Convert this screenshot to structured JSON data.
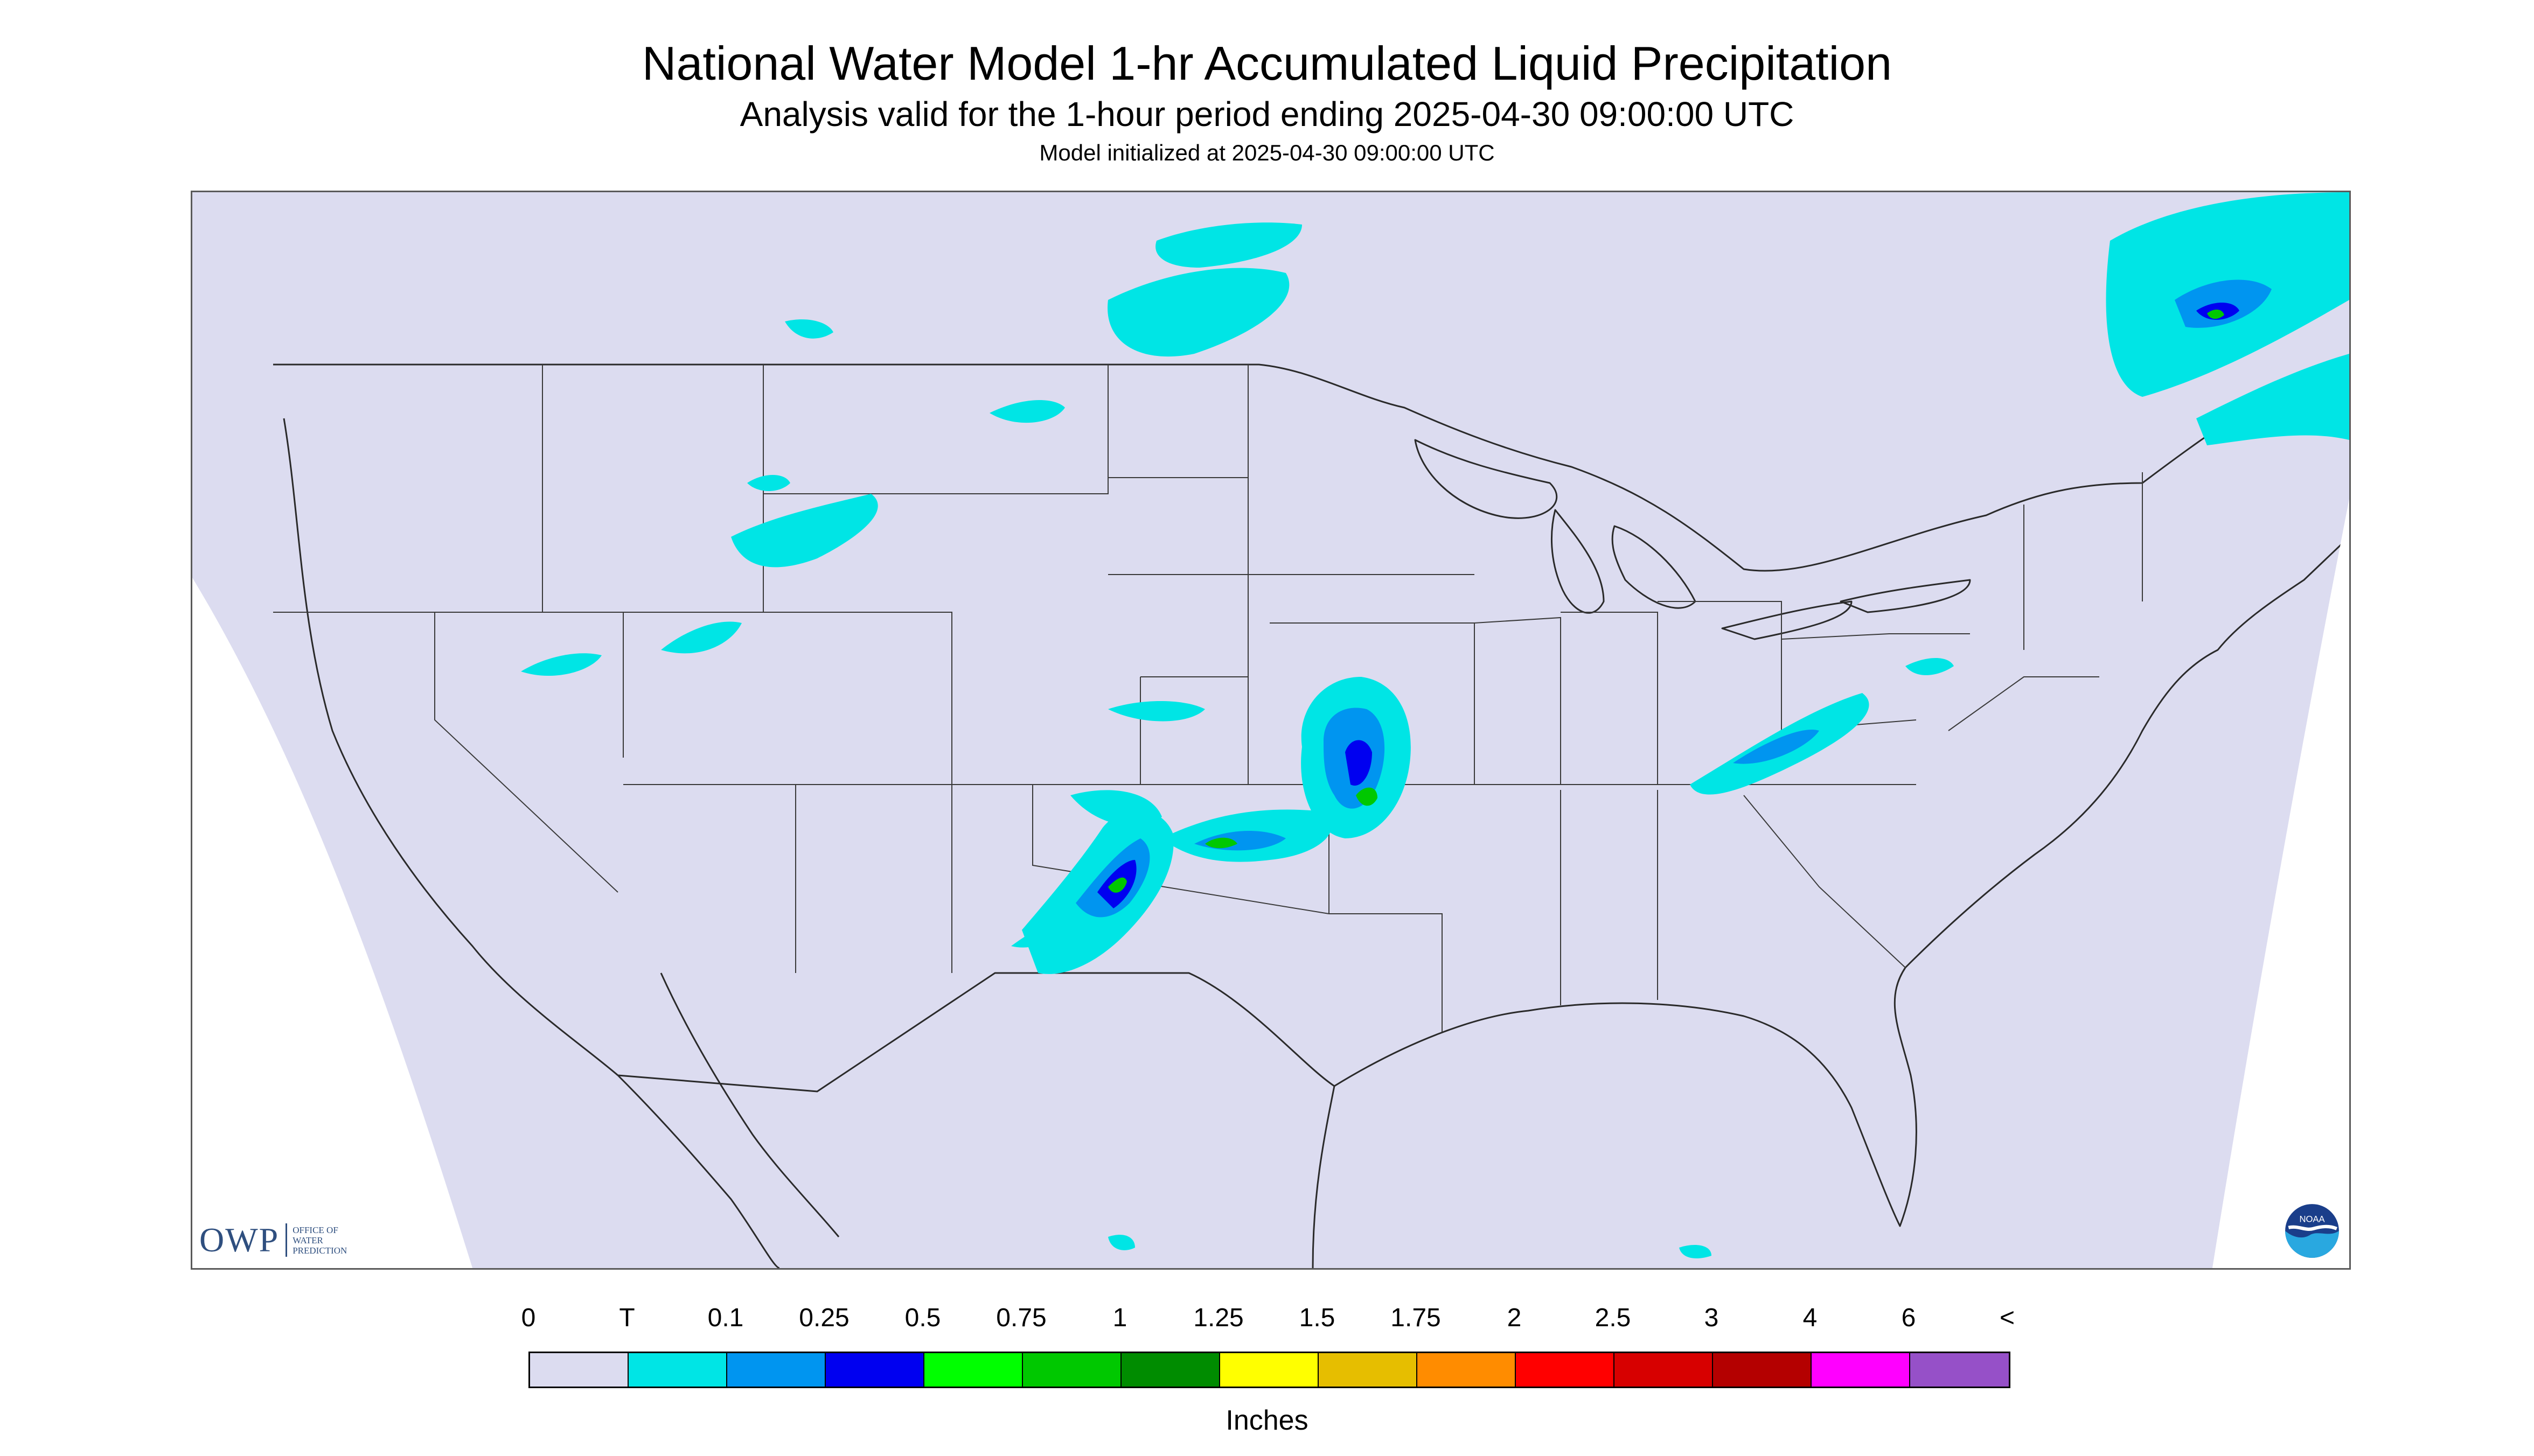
{
  "header": {
    "title": "National Water Model 1-hr Accumulated Liquid Precipitation",
    "subtitle": "Analysis valid for the 1-hour period ending 2025-04-30 09:00:00 UTC",
    "initialized": "Model initialized at 2025-04-30 09:00:00 UTC"
  },
  "map": {
    "background_color": "#dcdcf0",
    "outside_color": "#ffffff",
    "boundary_color": "#2a2a2a",
    "precip_areas": [
      {
        "region": "Southern Plains / Oklahoma-Arkansas",
        "max_class": "1.25"
      },
      {
        "region": "Missouri",
        "max_class": "1"
      },
      {
        "region": "Montana / Wyoming",
        "max_class": "0.1"
      },
      {
        "region": "Appalachians / Virginia",
        "max_class": "0.25"
      },
      {
        "region": "Quebec / Eastern Canada",
        "max_class": "1"
      },
      {
        "region": "Manitoba / Ontario",
        "max_class": "0.1"
      }
    ]
  },
  "logos": {
    "owp": {
      "short": "OWP",
      "long": "OFFICE OF\nWATER\nPREDICTION"
    },
    "noaa": {
      "text": "NOAA"
    }
  },
  "legend": {
    "tick_labels": [
      "0",
      "T",
      "0.1",
      "0.25",
      "0.5",
      "0.75",
      "1",
      "1.25",
      "1.5",
      "1.75",
      "2",
      "2.5",
      "3",
      "4",
      "6",
      "<"
    ],
    "colors": [
      "#dcdcf0",
      "#00e5e5",
      "#0095f0",
      "#0000f0",
      "#00ff00",
      "#00c800",
      "#008c00",
      "#ffff00",
      "#e6be00",
      "#ff8c00",
      "#ff0000",
      "#d70000",
      "#b40000",
      "#ff00ff",
      "#9650c8"
    ],
    "units": "Inches"
  }
}
